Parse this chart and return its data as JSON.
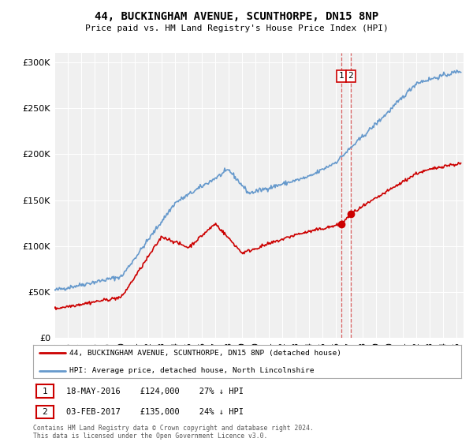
{
  "title": "44, BUCKINGHAM AVENUE, SCUNTHORPE, DN15 8NP",
  "subtitle": "Price paid vs. HM Land Registry's House Price Index (HPI)",
  "red_label": "44, BUCKINGHAM AVENUE, SCUNTHORPE, DN15 8NP (detached house)",
  "blue_label": "HPI: Average price, detached house, North Lincolnshire",
  "transaction1": {
    "num": "1",
    "date": "18-MAY-2016",
    "price": "£124,000",
    "hpi": "27% ↓ HPI",
    "year": 2016.38
  },
  "transaction2": {
    "num": "2",
    "date": "03-FEB-2017",
    "price": "£135,000",
    "hpi": "24% ↓ HPI",
    "year": 2017.09
  },
  "footnote": "Contains HM Land Registry data © Crown copyright and database right 2024.\nThis data is licensed under the Open Government Licence v3.0.",
  "ylim": [
    0,
    310000
  ],
  "xlim_start": 1995.0,
  "xlim_end": 2025.5,
  "red_color": "#cc0000",
  "blue_color": "#6699cc",
  "marker1_price": 124000,
  "marker2_price": 135000,
  "background_color": "#f0f0f0"
}
